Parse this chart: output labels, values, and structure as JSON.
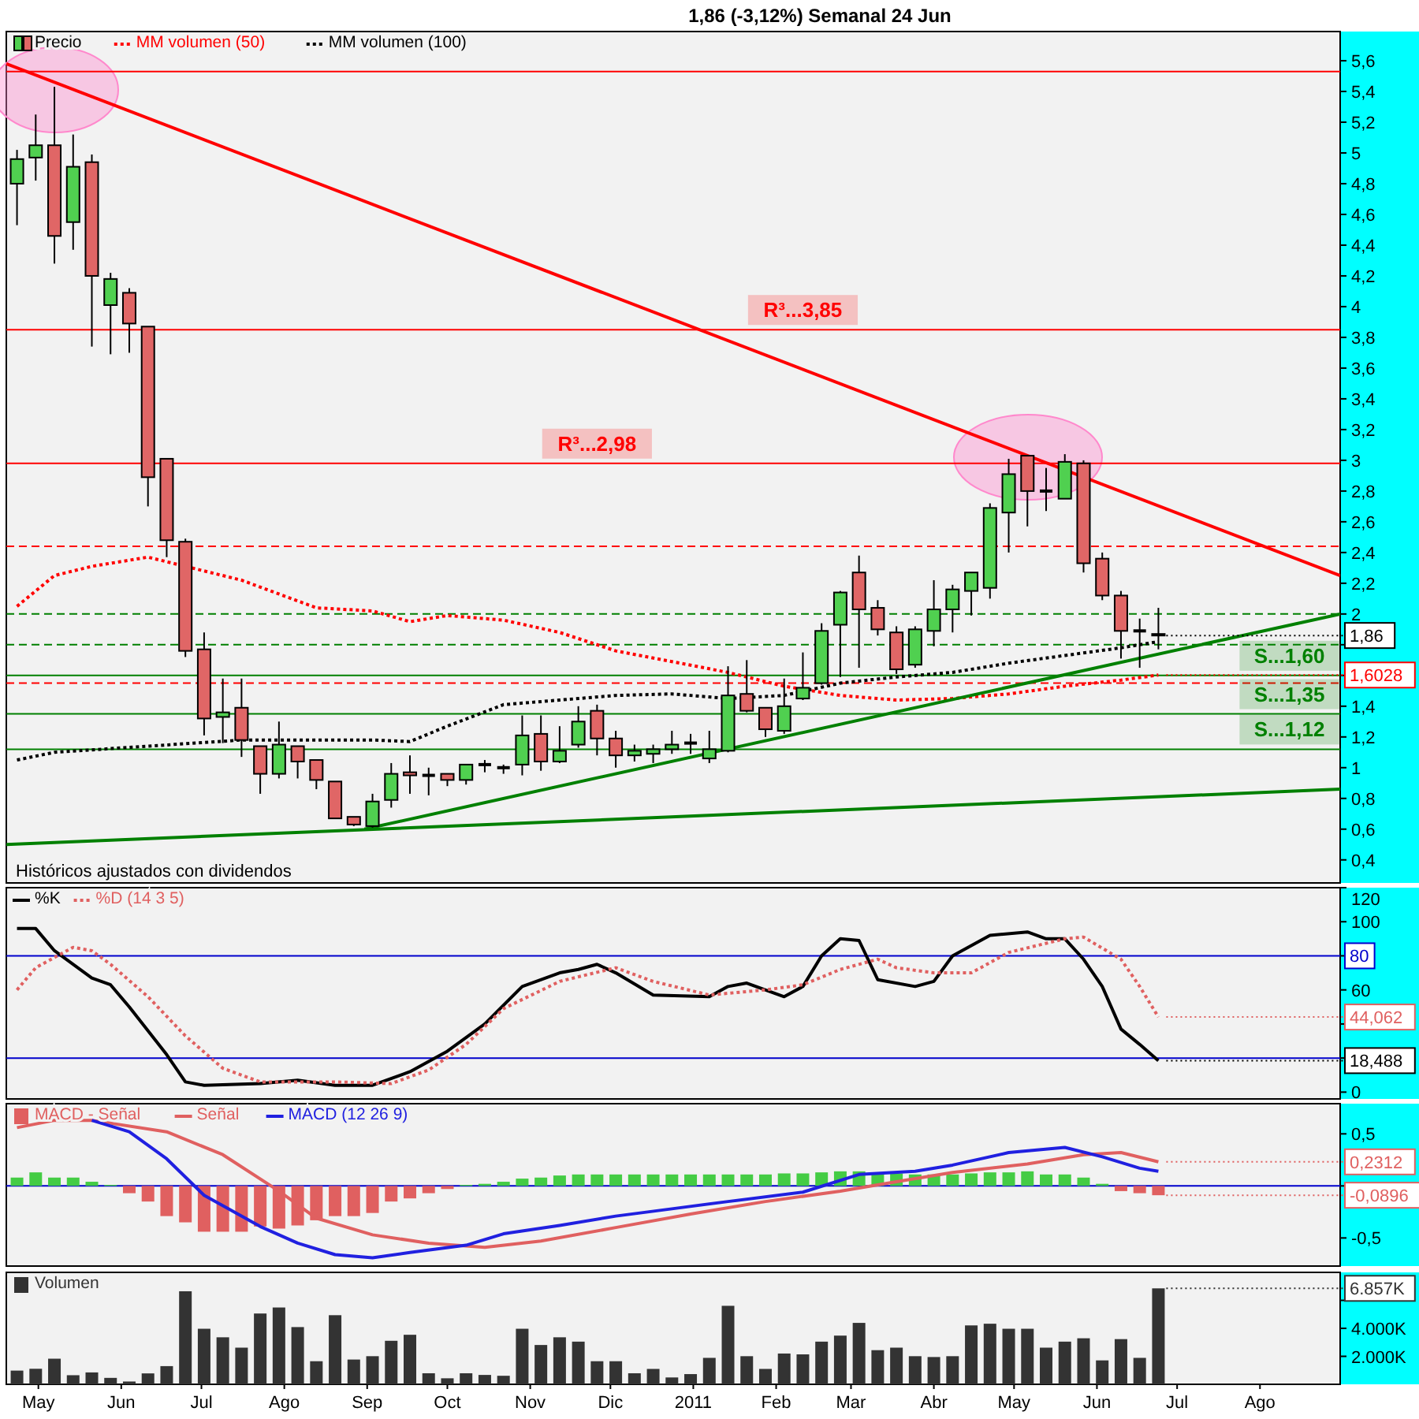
{
  "chart_data": [
    {
      "type": "candlestick",
      "title": "1,86 (-3,12%)   Semanal  24 Jun",
      "legend": "top left",
      "tick_labels": "y",
      "x": [
        "2010-04-23",
        "2010-04-30",
        "2010-05-07",
        "2010-05-14",
        "2010-05-21",
        "2010-05-28",
        "2010-06-04",
        "2010-06-11",
        "2010-06-18",
        "2010-06-25",
        "2010-07-02",
        "2010-07-09",
        "2010-07-16",
        "2010-07-23",
        "2010-07-30",
        "2010-08-06",
        "2010-08-13",
        "2010-08-20",
        "2010-08-27",
        "2010-09-03",
        "2010-09-10",
        "2010-09-17",
        "2010-09-24",
        "2010-10-01",
        "2010-10-08",
        "2010-10-15",
        "2010-10-22",
        "2010-10-29",
        "2010-11-05",
        "2010-11-12",
        "2010-11-19",
        "2010-11-26",
        "2010-12-03",
        "2010-12-10",
        "2010-12-17",
        "2010-12-24",
        "2010-12-31",
        "2011-01-07",
        "2011-01-14",
        "2011-01-21",
        "2011-01-28",
        "2011-02-04",
        "2011-02-11",
        "2011-02-18",
        "2011-02-25",
        "2011-03-04",
        "2011-03-11",
        "2011-03-18",
        "2011-03-25",
        "2011-04-01",
        "2011-04-08",
        "2011-04-15",
        "2011-04-22",
        "2011-04-29",
        "2011-05-06",
        "2011-05-13",
        "2011-05-20",
        "2011-05-27",
        "2011-06-03",
        "2011-06-10",
        "2011-06-17",
        "2011-06-24"
      ],
      "xlim": [
        "2010-04-19",
        "2011-08-31"
      ],
      "ylim": [
        0.25,
        5.79
      ],
      "yticks": [
        {
          "value": 0.4,
          "label": "0,4"
        },
        {
          "value": 0.6,
          "label": "0,6"
        },
        {
          "value": 0.8,
          "label": "0,8"
        },
        1,
        {
          "value": 1.2,
          "label": "1,2"
        },
        {
          "value": 1.4,
          "label": "1,4"
        },
        {
          "value": 1.6,
          "label": null
        },
        {
          "value": 1.8,
          "label": null
        },
        2,
        {
          "value": 2.2,
          "label": "2,2"
        },
        {
          "value": 2.4,
          "label": "2,4"
        },
        {
          "value": 2.6,
          "label": "2,6"
        },
        {
          "value": 2.8,
          "label": "2,8"
        },
        3,
        {
          "value": 3.2,
          "label": "3,2"
        },
        {
          "value": 3.4,
          "label": "3,4"
        },
        {
          "value": 3.6,
          "label": "3,6"
        },
        {
          "value": 3.8,
          "label": "3,8"
        },
        4,
        {
          "value": 4.2,
          "label": "4,2"
        },
        {
          "value": 4.4,
          "label": "4,4"
        },
        {
          "value": 4.6,
          "label": "4,6"
        },
        {
          "value": 4.8,
          "label": "4,8"
        },
        5,
        {
          "value": 5.2,
          "label": "5,2"
        },
        {
          "value": 5.4,
          "label": "5,4"
        },
        {
          "value": 5.6,
          "label": "5,6"
        }
      ],
      "series": [
        {
          "type": "candlestick",
          "name": "Precio",
          "color": "#000000",
          "ohlc": [
            [
              4.8,
              5.02,
              4.53,
              4.96
            ],
            [
              4.97,
              5.25,
              4.82,
              5.05
            ],
            [
              5.05,
              5.43,
              4.28,
              4.46
            ],
            [
              4.55,
              5.12,
              4.37,
              4.91
            ],
            [
              4.94,
              4.99,
              3.74,
              4.2
            ],
            [
              4.01,
              4.22,
              3.69,
              4.18
            ],
            [
              4.09,
              4.12,
              3.7,
              3.89
            ],
            [
              3.87,
              3.87,
              2.7,
              2.89
            ],
            [
              3.01,
              3.01,
              2.37,
              2.48
            ],
            [
              2.47,
              2.49,
              1.72,
              1.76
            ],
            [
              1.77,
              1.88,
              1.21,
              1.32
            ],
            [
              1.33,
              1.58,
              1.16,
              1.36
            ],
            [
              1.39,
              1.58,
              1.07,
              1.18
            ],
            [
              1.14,
              1.14,
              0.83,
              0.96
            ],
            [
              0.96,
              1.3,
              0.93,
              1.15
            ],
            [
              1.14,
              1.14,
              0.93,
              1.04
            ],
            [
              1.05,
              1.05,
              0.86,
              0.92
            ],
            [
              0.91,
              0.91,
              0.67,
              0.67
            ],
            [
              0.68,
              0.68,
              0.62,
              0.63
            ],
            [
              0.62,
              0.83,
              0.61,
              0.78
            ],
            [
              0.79,
              1.03,
              0.74,
              0.96
            ],
            [
              0.97,
              1.08,
              0.83,
              0.95
            ],
            [
              0.95,
              1.0,
              0.82,
              0.95
            ],
            [
              0.96,
              0.96,
              0.88,
              0.92
            ],
            [
              0.92,
              1.02,
              0.89,
              1.02
            ],
            [
              1.02,
              1.05,
              0.97,
              1.02
            ],
            [
              1.0,
              1.02,
              0.96,
              1.0
            ],
            [
              1.02,
              1.34,
              0.95,
              1.21
            ],
            [
              1.22,
              1.34,
              0.98,
              1.04
            ],
            [
              1.04,
              1.27,
              1.03,
              1.11
            ],
            [
              1.15,
              1.4,
              1.13,
              1.3
            ],
            [
              1.37,
              1.41,
              1.08,
              1.19
            ],
            [
              1.19,
              1.24,
              1.0,
              1.08
            ],
            [
              1.08,
              1.15,
              1.04,
              1.11
            ],
            [
              1.09,
              1.15,
              1.03,
              1.12
            ],
            [
              1.12,
              1.24,
              1.09,
              1.15
            ],
            [
              1.16,
              1.22,
              1.09,
              1.16
            ],
            [
              1.06,
              1.24,
              1.03,
              1.12
            ],
            [
              1.11,
              1.66,
              1.1,
              1.47
            ],
            [
              1.48,
              1.7,
              1.36,
              1.37
            ],
            [
              1.39,
              1.39,
              1.2,
              1.25
            ],
            [
              1.24,
              1.58,
              1.22,
              1.4
            ],
            [
              1.45,
              1.75,
              1.44,
              1.52
            ],
            [
              1.55,
              1.94,
              1.54,
              1.89
            ],
            [
              1.93,
              2.15,
              1.59,
              2.14
            ],
            [
              2.27,
              2.38,
              1.65,
              2.03
            ],
            [
              2.04,
              2.09,
              1.86,
              1.9
            ],
            [
              1.88,
              1.92,
              1.61,
              1.64
            ],
            [
              1.67,
              1.92,
              1.65,
              1.9
            ],
            [
              1.89,
              2.22,
              1.79,
              2.03
            ],
            [
              2.03,
              2.19,
              1.88,
              2.16
            ],
            [
              2.15,
              2.27,
              1.99,
              2.27
            ],
            [
              2.17,
              2.72,
              2.1,
              2.69
            ],
            [
              2.66,
              3.01,
              2.4,
              2.91
            ],
            [
              3.03,
              3.03,
              2.57,
              2.8
            ],
            [
              2.8,
              2.95,
              2.67,
              2.8
            ],
            [
              2.75,
              3.04,
              2.75,
              2.99
            ],
            [
              2.98,
              3.0,
              2.27,
              2.33
            ],
            [
              2.36,
              2.4,
              2.09,
              2.12
            ],
            [
              2.12,
              2.15,
              1.71,
              1.89
            ],
            [
              1.89,
              1.97,
              1.65,
              1.89
            ],
            [
              1.87,
              2.04,
              1.77,
              1.86
            ]
          ],
          "colors": [
            "#50d050",
            "#50d050",
            "#e06666",
            "#50d050",
            "#e06666",
            "#50d050",
            "#e06666",
            "#e06666",
            "#e06666",
            "#e06666",
            "#e06666",
            "#50d050",
            "#e06666",
            "#e06666",
            "#50d050",
            "#e06666",
            "#e06666",
            "#e06666",
            "#e06666",
            "#50d050",
            "#50d050",
            "#e06666",
            "#000000",
            "#e06666",
            "#50d050",
            "#000000",
            "#000000",
            "#50d050",
            "#e06666",
            "#50d050",
            "#50d050",
            "#e06666",
            "#e06666",
            "#50d050",
            "#50d050",
            "#50d050",
            "#000000",
            "#50d050",
            "#50d050",
            "#e06666",
            "#e06666",
            "#50d050",
            "#50d050",
            "#50d050",
            "#50d050",
            "#e06666",
            "#e06666",
            "#e06666",
            "#50d050",
            "#50d050",
            "#50d050",
            "#50d050",
            "#50d050",
            "#50d050",
            "#e06666",
            "#000000",
            "#50d050",
            "#e06666",
            "#e06666",
            "#e06666",
            "#000000",
            "#000000"
          ]
        },
        {
          "type": "line",
          "name": "MM volumen (50)",
          "color": "#ff0000",
          "line_style": "dotted",
          "x": [
            "2010-04-23",
            "2010-05-07",
            "2010-05-21",
            "2010-06-11",
            "2010-07-16",
            "2010-08-13",
            "2010-09-03",
            "2010-09-17",
            "2010-10-01",
            "2010-10-22",
            "2010-11-12",
            "2010-12-03",
            "2010-12-24",
            "2011-01-14",
            "2011-02-04",
            "2011-02-25",
            "2011-03-18",
            "2011-04-08",
            "2011-04-29",
            "2011-05-20",
            "2011-06-10",
            "2011-06-24"
          ],
          "values": [
            2.05,
            2.25,
            2.31,
            2.37,
            2.22,
            2.04,
            2.02,
            1.95,
            1.99,
            1.96,
            1.88,
            1.76,
            1.69,
            1.62,
            1.53,
            1.47,
            1.44,
            1.45,
            1.48,
            1.53,
            1.57,
            1.6028
          ]
        },
        {
          "type": "line",
          "name": "MM volumen (100)",
          "color": "#000000",
          "line_style": "dotted",
          "x": [
            "2010-04-23",
            "2010-05-07",
            "2010-06-11",
            "2010-07-16",
            "2010-09-03",
            "2010-09-17",
            "2010-10-01",
            "2010-10-22",
            "2010-11-12",
            "2010-12-03",
            "2010-12-24",
            "2011-01-14",
            "2011-02-04",
            "2011-02-25",
            "2011-03-18",
            "2011-04-08",
            "2011-04-29",
            "2011-05-20",
            "2011-06-10",
            "2011-06-24"
          ],
          "values": [
            1.05,
            1.1,
            1.14,
            1.18,
            1.18,
            1.17,
            1.27,
            1.41,
            1.44,
            1.47,
            1.48,
            1.45,
            1.47,
            1.55,
            1.59,
            1.62,
            1.68,
            1.73,
            1.78,
            1.82
          ]
        },
        {
          "type": "line",
          "color": "#ff0000",
          "x": [
            "2010-04-19",
            "2011-08-31"
          ],
          "values": [
            5.58,
            2.25
          ]
        },
        {
          "type": "line",
          "color": "#008000",
          "x": [
            "2010-08-31",
            "2011-08-31"
          ],
          "values": [
            0.6,
            2.0
          ]
        },
        {
          "type": "line",
          "color": "#008000",
          "x": [
            "2010-04-19",
            "2011-08-31"
          ],
          "values": [
            0.5,
            0.86
          ]
        }
      ],
      "ref_lines": [
        {
          "axis": "y",
          "value": 5.53,
          "color": "#ff0000"
        },
        {
          "axis": "y",
          "value": 3.85,
          "color": "#ff0000"
        },
        {
          "axis": "y",
          "value": 2.98,
          "color": "#ff0000"
        },
        {
          "axis": "y",
          "value": 2.44,
          "color": "#ff0000",
          "line_style": "dashed"
        },
        {
          "axis": "y",
          "value": 1.55,
          "color": "#ff0000",
          "line_style": "dashed"
        },
        {
          "axis": "y",
          "value": 2.0,
          "color": "#008000",
          "line_style": "dashed"
        },
        {
          "axis": "y",
          "value": 1.8,
          "color": "#008000",
          "line_style": "dashed"
        },
        {
          "axis": "y",
          "value": 1.6,
          "color": "#008000"
        },
        {
          "axis": "y",
          "value": 1.35,
          "color": "#008000"
        },
        {
          "axis": "y",
          "value": 1.12,
          "color": "#008000"
        }
      ],
      "annotations": [
        {
          "text": "R³...3,85",
          "x": "2011-02-11",
          "y": 3.85
        },
        {
          "text": "R³...2,98",
          "x": "2010-11-26",
          "y": 2.98
        },
        {
          "text": "S...1,60",
          "x": "2011-08-12",
          "y": 1.6
        },
        {
          "text": "S...1,35",
          "x": "2011-08-12",
          "y": 1.35
        },
        {
          "text": "S...1,12",
          "x": "2011-08-12",
          "y": 1.12
        },
        {
          "text": "1,86",
          "x": "2011-06-24",
          "y": 1.86
        },
        {
          "text": "1,6028",
          "x": "2011-06-24",
          "y": 1.6028
        },
        "Históricos ajustados con dividendos"
      ]
    },
    {
      "type": "line",
      "legend": "top left",
      "tick_labels": "y",
      "xlim": [
        "2010-04-19",
        "2011-08-31"
      ],
      "ylim": [
        -4,
        120
      ],
      "yticks": [
        0,
        {
          "value": 20,
          "label": null
        },
        {
          "value": 40,
          "label": null
        },
        60,
        {
          "value": 80,
          "label": null
        },
        100,
        120
      ],
      "series": [
        {
          "name": "%K",
          "color": "#000000",
          "x": [
            "2010-04-23",
            "2010-04-30",
            "2010-05-07",
            "2010-05-21",
            "2010-05-28",
            "2010-06-04",
            "2010-06-18",
            "2010-06-25",
            "2010-07-02",
            "2010-07-23",
            "2010-08-06",
            "2010-08-20",
            "2010-09-03",
            "2010-09-17",
            "2010-10-01",
            "2010-10-15",
            "2010-10-29",
            "2010-11-12",
            "2010-11-19",
            "2010-11-26",
            "2010-12-03",
            "2010-12-17",
            "2011-01-07",
            "2011-01-14",
            "2011-01-21",
            "2011-02-04",
            "2011-02-11",
            "2011-02-18",
            "2011-02-25",
            "2011-03-04",
            "2011-03-11",
            "2011-03-25",
            "2011-04-01",
            "2011-04-08",
            "2011-04-22",
            "2011-05-06",
            "2011-05-13",
            "2011-05-20",
            "2011-05-27",
            "2011-06-03",
            "2011-06-10",
            "2011-06-17",
            "2011-06-24"
          ],
          "values": [
            96,
            96,
            83,
            67,
            63,
            50,
            22,
            6,
            4,
            5,
            7,
            4,
            4,
            12,
            24,
            40,
            62,
            70,
            72,
            75,
            70,
            57,
            56,
            62,
            64,
            56,
            62,
            80,
            90,
            89,
            66,
            62,
            65,
            80,
            92,
            94,
            90,
            90,
            78,
            62,
            37,
            28,
            18.488
          ]
        },
        {
          "name": "%D (14 3 5)",
          "color": "#e06060",
          "line_style": "dotted",
          "x": [
            "2010-04-23",
            "2010-04-30",
            "2010-05-14",
            "2010-05-21",
            "2010-05-28",
            "2010-06-11",
            "2010-06-25",
            "2010-07-09",
            "2010-07-23",
            "2010-08-20",
            "2010-09-10",
            "2010-09-24",
            "2010-10-08",
            "2010-10-22",
            "2010-11-12",
            "2010-12-03",
            "2010-12-17",
            "2011-01-07",
            "2011-01-28",
            "2011-02-11",
            "2011-02-25",
            "2011-03-11",
            "2011-03-18",
            "2011-04-01",
            "2011-04-15",
            "2011-04-29",
            "2011-05-20",
            "2011-05-27",
            "2011-06-10",
            "2011-06-17",
            "2011-06-24"
          ],
          "values": [
            60,
            73,
            85,
            83,
            75,
            56,
            33,
            14,
            6,
            6,
            5,
            13,
            28,
            49,
            65,
            73,
            65,
            57,
            60,
            63,
            72,
            78,
            73,
            70,
            70,
            82,
            90,
            91,
            78,
            62,
            44.062
          ]
        }
      ],
      "ref_lines": [
        {
          "axis": "y",
          "value": 80,
          "label": "80",
          "color": "#0000cc"
        },
        {
          "axis": "y",
          "value": 20,
          "color": "#0000cc"
        }
      ],
      "annotations": [
        {
          "text": "44,062",
          "x": "2011-06-24",
          "y": 44.062
        },
        {
          "text": "18,488",
          "x": "2011-06-24",
          "y": 18.488
        }
      ]
    },
    {
      "type": "bar",
      "legend": "top left",
      "tick_labels": "y",
      "x": [
        "2010-04-23",
        "2010-04-30",
        "2010-05-07",
        "2010-05-14",
        "2010-05-21",
        "2010-05-28",
        "2010-06-04",
        "2010-06-11",
        "2010-06-18",
        "2010-06-25",
        "2010-07-02",
        "2010-07-09",
        "2010-07-16",
        "2010-07-23",
        "2010-07-30",
        "2010-08-06",
        "2010-08-13",
        "2010-08-20",
        "2010-08-27",
        "2010-09-03",
        "2010-09-10",
        "2010-09-17",
        "2010-09-24",
        "2010-10-01",
        "2010-10-08",
        "2010-10-15",
        "2010-10-22",
        "2010-10-29",
        "2010-11-05",
        "2010-11-12",
        "2010-11-19",
        "2010-11-26",
        "2010-12-03",
        "2010-12-10",
        "2010-12-17",
        "2010-12-24",
        "2010-12-31",
        "2011-01-07",
        "2011-01-14",
        "2011-01-21",
        "2011-01-28",
        "2011-02-04",
        "2011-02-11",
        "2011-02-18",
        "2011-02-25",
        "2011-03-04",
        "2011-03-11",
        "2011-03-18",
        "2011-03-25",
        "2011-04-01",
        "2011-04-08",
        "2011-04-15",
        "2011-04-22",
        "2011-04-29",
        "2011-05-06",
        "2011-05-13",
        "2011-05-20",
        "2011-05-27",
        "2011-06-03",
        "2011-06-10",
        "2011-06-17",
        "2011-06-24"
      ],
      "xlim": [
        "2010-04-19",
        "2011-08-31"
      ],
      "ylim": [
        -0.77,
        0.79
      ],
      "yticks": [
        {
          "value": -0.5,
          "label": "-0,5"
        },
        {
          "value": 0,
          "label": null
        },
        {
          "value": 0.5,
          "label": "0,5"
        }
      ],
      "series": [
        {
          "type": "bar",
          "name": "MACD - Señal",
          "color": "#e06060",
          "values": [
            0.08,
            0.13,
            0.08,
            0.08,
            0.04,
            0.01,
            -0.07,
            -0.15,
            -0.29,
            -0.35,
            -0.44,
            -0.44,
            -0.44,
            -0.39,
            -0.41,
            -0.38,
            -0.33,
            -0.29,
            -0.29,
            -0.26,
            -0.15,
            -0.12,
            -0.07,
            -0.03,
            0.01,
            0.02,
            0.04,
            0.07,
            0.08,
            0.1,
            0.11,
            0.11,
            0.11,
            0.11,
            0.11,
            0.11,
            0.11,
            0.11,
            0.11,
            0.11,
            0.11,
            0.12,
            0.12,
            0.13,
            0.14,
            0.14,
            0.13,
            0.12,
            0.11,
            0.11,
            0.11,
            0.12,
            0.13,
            0.13,
            0.14,
            0.11,
            0.11,
            0.08,
            0.02,
            -0.05,
            -0.07,
            -0.0896
          ],
          "colors": [
            "#44cc44",
            "#44cc44",
            "#44cc44",
            "#44cc44",
            "#44cc44",
            "#44cc44",
            "#e06060",
            "#e06060",
            "#e06060",
            "#e06060",
            "#e06060",
            "#e06060",
            "#e06060",
            "#e06060",
            "#e06060",
            "#e06060",
            "#e06060",
            "#e06060",
            "#e06060",
            "#e06060",
            "#e06060",
            "#e06060",
            "#e06060",
            "#e06060",
            "#44cc44",
            "#44cc44",
            "#44cc44",
            "#44cc44",
            "#44cc44",
            "#44cc44",
            "#44cc44",
            "#44cc44",
            "#44cc44",
            "#44cc44",
            "#44cc44",
            "#44cc44",
            "#44cc44",
            "#44cc44",
            "#44cc44",
            "#44cc44",
            "#44cc44",
            "#44cc44",
            "#44cc44",
            "#44cc44",
            "#44cc44",
            "#44cc44",
            "#44cc44",
            "#44cc44",
            "#44cc44",
            "#44cc44",
            "#44cc44",
            "#44cc44",
            "#44cc44",
            "#44cc44",
            "#44cc44",
            "#44cc44",
            "#44cc44",
            "#44cc44",
            "#44cc44",
            "#e06060",
            "#e06060",
            "#e06060"
          ]
        },
        {
          "type": "line",
          "name": "Señal",
          "color": "#e06060",
          "x": [
            "2010-04-23",
            "2010-05-07",
            "2010-05-21",
            "2010-06-18",
            "2010-07-09",
            "2010-07-30",
            "2010-08-13",
            "2010-09-03",
            "2010-09-24",
            "2010-10-15",
            "2010-11-05",
            "2010-12-03",
            "2010-12-31",
            "2011-01-28",
            "2011-02-25",
            "2011-03-18",
            "2011-04-08",
            "2011-05-06",
            "2011-05-27",
            "2011-06-10",
            "2011-06-24"
          ],
          "values": [
            0.56,
            0.63,
            0.63,
            0.52,
            0.3,
            -0.05,
            -0.31,
            -0.47,
            -0.55,
            -0.59,
            -0.53,
            -0.4,
            -0.27,
            -0.15,
            -0.05,
            0.04,
            0.13,
            0.21,
            0.3,
            0.32,
            0.2312
          ]
        },
        {
          "type": "line",
          "name": "MACD (12 26 9)",
          "color": "#2020e0",
          "x": [
            "2010-05-21",
            "2010-06-04",
            "2010-06-18",
            "2010-07-02",
            "2010-07-23",
            "2010-08-06",
            "2010-08-20",
            "2010-09-03",
            "2010-09-17",
            "2010-10-08",
            "2010-10-22",
            "2010-11-12",
            "2010-12-03",
            "2010-12-24",
            "2011-01-14",
            "2011-02-11",
            "2011-03-04",
            "2011-03-25",
            "2011-04-08",
            "2011-04-29",
            "2011-05-20",
            "2011-06-03",
            "2011-06-17",
            "2011-06-24"
          ],
          "values": [
            0.63,
            0.52,
            0.26,
            -0.09,
            -0.39,
            -0.55,
            -0.66,
            -0.69,
            -0.64,
            -0.57,
            -0.46,
            -0.38,
            -0.29,
            -0.22,
            -0.15,
            -0.06,
            0.11,
            0.14,
            0.2,
            0.32,
            0.37,
            0.28,
            0.17,
            0.14
          ]
        }
      ],
      "ref_lines": [
        {
          "axis": "y",
          "value": 0,
          "color": "#0000cc"
        }
      ],
      "annotations": [
        {
          "text": "0,2312",
          "x": "2011-06-24",
          "y": 0.2312
        },
        {
          "text": "-0,0896",
          "x": "2011-06-24",
          "y": -0.0896
        }
      ]
    },
    {
      "type": "bar",
      "legend": "top left",
      "x": [
        "2010-04-23",
        "2010-04-30",
        "2010-05-07",
        "2010-05-14",
        "2010-05-21",
        "2010-05-28",
        "2010-06-04",
        "2010-06-11",
        "2010-06-18",
        "2010-06-25",
        "2010-07-02",
        "2010-07-09",
        "2010-07-16",
        "2010-07-23",
        "2010-07-30",
        "2010-08-06",
        "2010-08-13",
        "2010-08-20",
        "2010-08-27",
        "2010-09-03",
        "2010-09-10",
        "2010-09-17",
        "2010-09-24",
        "2010-10-01",
        "2010-10-08",
        "2010-10-15",
        "2010-10-22",
        "2010-10-29",
        "2010-11-05",
        "2010-11-12",
        "2010-11-19",
        "2010-11-26",
        "2010-12-03",
        "2010-12-10",
        "2010-12-17",
        "2010-12-24",
        "2010-12-31",
        "2011-01-07",
        "2011-01-14",
        "2011-01-21",
        "2011-01-28",
        "2011-02-04",
        "2011-02-11",
        "2011-02-18",
        "2011-02-25",
        "2011-03-04",
        "2011-03-11",
        "2011-03-18",
        "2011-03-25",
        "2011-04-01",
        "2011-04-08",
        "2011-04-15",
        "2011-04-22",
        "2011-04-29",
        "2011-05-06",
        "2011-05-13",
        "2011-05-20",
        "2011-05-27",
        "2011-06-03",
        "2011-06-10",
        "2011-06-17",
        "2011-06-24"
      ],
      "xlim": [
        "2010-04-19",
        "2011-08-31"
      ],
      "xticks": [
        {
          "value": "2010-05-01",
          "label": "May"
        },
        {
          "value": "2010-06-01",
          "label": "Jun"
        },
        {
          "value": "2010-07-01",
          "label": "Jul"
        },
        {
          "value": "2010-08-01",
          "label": "Ago"
        },
        {
          "value": "2010-09-01",
          "label": "Sep"
        },
        {
          "value": "2010-10-01",
          "label": "Oct"
        },
        {
          "value": "2010-11-01",
          "label": "Nov"
        },
        {
          "value": "2010-12-01",
          "label": "Dic"
        },
        {
          "value": "2011-01-01",
          "label": "2011"
        },
        {
          "value": "2011-02-01",
          "label": "Feb"
        },
        {
          "value": "2011-03-01",
          "label": "Mar"
        },
        {
          "value": "2011-04-01",
          "label": "Abr"
        },
        {
          "value": "2011-05-01",
          "label": "May"
        },
        {
          "value": "2011-06-01",
          "label": "Jun"
        },
        {
          "value": "2011-07-01",
          "label": "Jul"
        },
        {
          "value": "2011-08-01",
          "label": "Ago"
        }
      ],
      "ylim": [
        0,
        8000
      ],
      "yticks": [
        {
          "value": 2000,
          "label": "2.000K"
        },
        {
          "value": 4000,
          "label": "4.000K"
        },
        {
          "value": 6000,
          "label": null
        }
      ],
      "series": [
        {
          "name": "Volumen",
          "color": "#333333",
          "values": [
            980,
            1110,
            1830,
            650,
            850,
            460,
            200,
            780,
            1300,
            6650,
            3970,
            3360,
            2620,
            5060,
            5490,
            4090,
            1650,
            4940,
            1770,
            2010,
            3110,
            3540,
            790,
            430,
            790,
            670,
            610,
            3970,
            2810,
            3360,
            3050,
            1650,
            1650,
            790,
            1100,
            490,
            730,
            1890,
            5610,
            2010,
            1100,
            2200,
            2140,
            3050,
            3480,
            4390,
            2440,
            2620,
            2010,
            1950,
            2010,
            4210,
            4330,
            3970,
            3970,
            2620,
            3050,
            3290,
            1710,
            3230,
            1890,
            6857
          ]
        }
      ],
      "annotations": [
        {
          "text": "6.857K",
          "x": "2011-06-24",
          "y": 6857
        }
      ]
    }
  ]
}
